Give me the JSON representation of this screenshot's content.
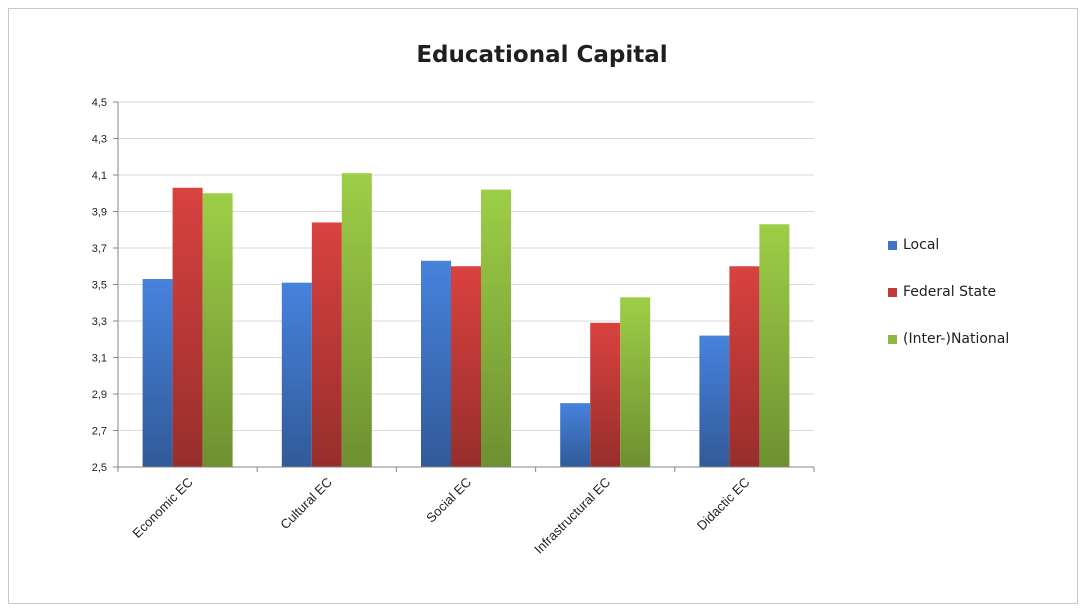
{
  "chart_data": {
    "type": "bar",
    "title": "Educational Capital",
    "xlabel": "",
    "ylabel": "",
    "ylim": [
      2.5,
      4.5
    ],
    "yticks": [
      "2,5",
      "2,7",
      "2,9",
      "3,1",
      "3,3",
      "3,5",
      "3,7",
      "3,9",
      "4,1",
      "4,3",
      "4,5"
    ],
    "grid": true,
    "legend_position": "right",
    "categories": [
      "Economic EC",
      "Cultural EC",
      "Social EC",
      "Infrastructural EC",
      "Didactic EC"
    ],
    "series": [
      {
        "name": "Local",
        "color": "#3f74c4",
        "values": [
          3.53,
          3.51,
          3.63,
          2.85,
          3.22
        ]
      },
      {
        "name": "Federal State",
        "color": "#c23b38",
        "values": [
          4.03,
          3.84,
          3.6,
          3.29,
          3.6
        ]
      },
      {
        "name": "(Inter-)National",
        "color": "#8cb83f",
        "values": [
          4.0,
          4.11,
          4.02,
          3.43,
          3.83
        ]
      }
    ]
  }
}
